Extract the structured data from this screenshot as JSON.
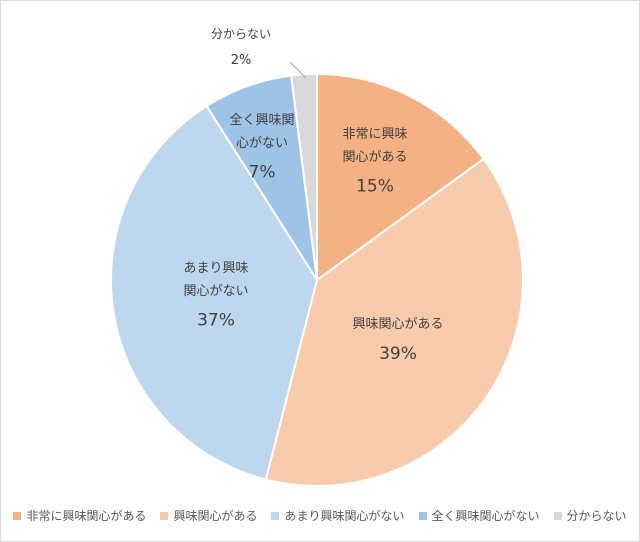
{
  "chart_data": {
    "type": "pie",
    "title": "",
    "slices": [
      {
        "label": "非常に興味関心がある",
        "label_lines": [
          "非常に興味",
          "関心がある"
        ],
        "value": 15,
        "display": "15%",
        "color": "#f4b183"
      },
      {
        "label": "興味関心がある",
        "label_lines": [
          "興味関心がある"
        ],
        "value": 39,
        "display": "39%",
        "color": "#f8cbad"
      },
      {
        "label": "あまり興味関心がない",
        "label_lines": [
          "あまり興味",
          "関心がない"
        ],
        "value": 37,
        "display": "37%",
        "color": "#bdd7ee"
      },
      {
        "label": "全く興味関心がない",
        "label_lines": [
          "全く興味関",
          "心がない"
        ],
        "value": 7,
        "display": "7%",
        "color": "#9dc3e6"
      },
      {
        "label": "分からない",
        "label_lines": [
          "分からない"
        ],
        "value": 2,
        "display": "2%",
        "color": "#d9d9d9"
      }
    ],
    "legend_position": "bottom",
    "start_angle_deg": 0,
    "direction": "clockwise"
  }
}
